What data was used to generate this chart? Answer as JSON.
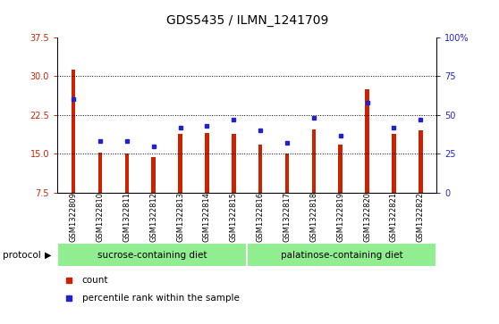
{
  "title": "GDS5435 / ILMN_1241709",
  "samples": [
    "GSM1322809",
    "GSM1322810",
    "GSM1322811",
    "GSM1322812",
    "GSM1322813",
    "GSM1322814",
    "GSM1322815",
    "GSM1322816",
    "GSM1322817",
    "GSM1322818",
    "GSM1322819",
    "GSM1322820",
    "GSM1322821",
    "GSM1322822"
  ],
  "counts": [
    31.2,
    15.2,
    15.1,
    14.4,
    18.8,
    19.1,
    18.8,
    16.8,
    15.0,
    19.8,
    16.8,
    27.5,
    18.8,
    19.5
  ],
  "percentiles": [
    60,
    33,
    33,
    30,
    42,
    43,
    47,
    40,
    32,
    48,
    37,
    58,
    42,
    47
  ],
  "ylim_left": [
    7.5,
    37.5
  ],
  "ylim_right": [
    0,
    100
  ],
  "yticks_left": [
    7.5,
    15.0,
    22.5,
    30.0,
    37.5
  ],
  "yticks_right": [
    0,
    25,
    50,
    75,
    100
  ],
  "bar_color": "#cc2200",
  "dot_color": "#2222cc",
  "sucrose_color": "#90ee90",
  "palatinose_color": "#90ee90",
  "sucrose_label": "sucrose-containing diet",
  "palatinose_label": "palatinose-containing diet",
  "sucrose_samples": 7,
  "palatinose_samples": 7,
  "protocol_label": "protocol",
  "legend_count": "count",
  "legend_percentile": "percentile rank within the sample",
  "title_fontsize": 10,
  "tick_fontsize": 7,
  "bar_width": 0.15
}
